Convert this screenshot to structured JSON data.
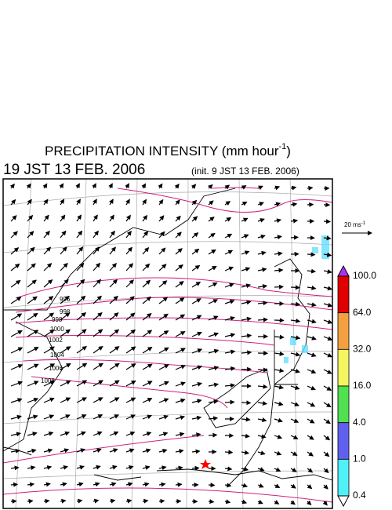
{
  "header": {
    "title": {
      "text": "PRECIPITATION INTENSITY (mm hour",
      "superscript": "-1",
      "close": ")"
    },
    "valid_time": "19 JST 13 FEB. 2006",
    "init_time": "(init. 9 JST 13 FEB. 2006)"
  },
  "wind_scale": {
    "text": "20 ms",
    "superscript": "-1"
  },
  "colorbar": {
    "labels": [
      "100.0",
      "64.0",
      "32.0",
      "16.0",
      "4.0",
      "1.0",
      "0.4"
    ],
    "colors": [
      "#e00000",
      "#f5a040",
      "#f5f560",
      "#50e050",
      "#6060f0",
      "#50f0f8"
    ],
    "over_color": "#b030f0",
    "under_color": "#ffffff"
  },
  "isobar_labels": [
    "996",
    "998",
    "998",
    "1000",
    "1002",
    "1004",
    "1006",
    "1008"
  ]
}
